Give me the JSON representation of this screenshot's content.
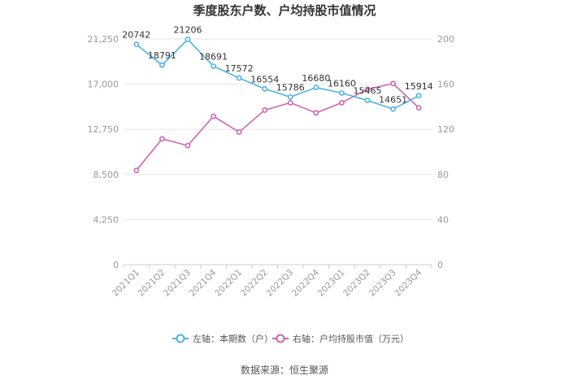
{
  "chart_data": {
    "type": "line",
    "title": "季度股东户数、户均持股市值情况",
    "categories": [
      "2021Q1",
      "2021Q2",
      "2021Q3",
      "2021Q4",
      "2022Q1",
      "2022Q2",
      "2022Q3",
      "2022Q4",
      "2023Q1",
      "2023Q2",
      "2023Q3",
      "2023Q4"
    ],
    "left_axis": {
      "min": 0,
      "max": 21250,
      "ticks": [
        "0",
        "4,250",
        "8,500",
        "12,750",
        "17,000",
        "21,250"
      ]
    },
    "right_axis": {
      "min": 0,
      "max": 200,
      "ticks": [
        "0",
        "40",
        "80",
        "120",
        "160",
        "200"
      ]
    },
    "series": [
      {
        "name": "左轴：本期数（户）",
        "axis": "left",
        "color": "#4db3e6",
        "values": [
          20742,
          18791,
          21206,
          18691,
          17572,
          16554,
          15786,
          16680,
          16160,
          15465,
          14651,
          15914
        ],
        "labels": [
          "20742",
          "18791",
          "21206",
          "18691",
          "17572",
          "16554",
          "15786",
          "16680",
          "16160",
          "15465",
          "14651",
          "15914"
        ]
      },
      {
        "name": "右轴：户均持股市值（万元）",
        "axis": "right",
        "color": "#cc66b3",
        "values": [
          83.5,
          111.5,
          105.5,
          131.5,
          117.5,
          137.0,
          143.5,
          134.5,
          143.5,
          155.5,
          160.5,
          139.0
        ]
      }
    ],
    "legend_position": "bottom-center"
  },
  "footer": {
    "source": "数据来源：恒生聚源"
  }
}
